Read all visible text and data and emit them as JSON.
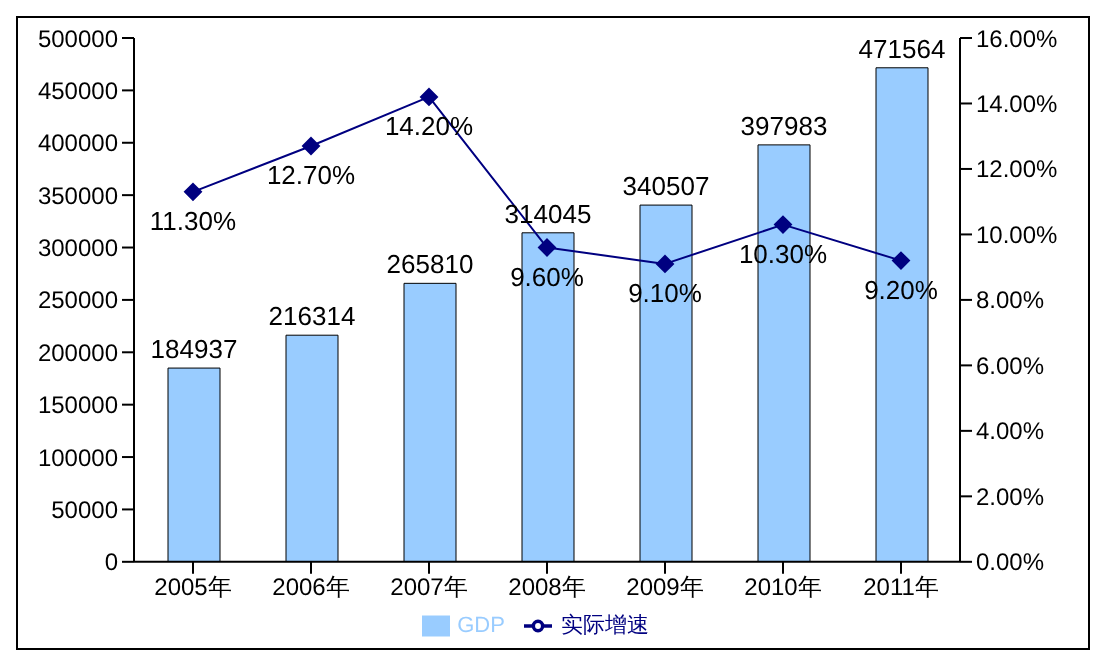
{
  "chart_data": {
    "type": "bar",
    "categories": [
      "2005年",
      "2006年",
      "2007年",
      "2008年",
      "2009年",
      "2010年",
      "2011年"
    ],
    "series": [
      {
        "name": "GDP",
        "color": "#99ccff",
        "values": [
          184937,
          216314,
          265810,
          314045,
          340507,
          397983,
          471564
        ],
        "value_labels": [
          "184937",
          "216314",
          "265810",
          "314045",
          "340507",
          "397983",
          "471564"
        ]
      },
      {
        "name": "实际增速",
        "type": "line",
        "axis": "y2",
        "color": "#000080",
        "marker": "diamond",
        "values": [
          11.3,
          12.7,
          14.2,
          9.6,
          9.1,
          10.3,
          9.2
        ],
        "value_labels": [
          "11.30%",
          "12.70%",
          "14.20%",
          "9.60%",
          "9.10%",
          "10.30%",
          "9.20%"
        ]
      }
    ],
    "ylim": [
      0,
      500000
    ],
    "yticks": [
      0,
      50000,
      100000,
      150000,
      200000,
      250000,
      300000,
      350000,
      400000,
      450000,
      500000
    ],
    "y2lim": [
      0,
      16
    ],
    "y2ticks": [
      {
        "value": 0,
        "label": "0.00%"
      },
      {
        "value": 2,
        "label": "2.00%"
      },
      {
        "value": 4,
        "label": "4.00%"
      },
      {
        "value": 6,
        "label": "6.00%"
      },
      {
        "value": 8,
        "label": "8.00%"
      },
      {
        "value": 10,
        "label": "10.00%"
      },
      {
        "value": 12,
        "label": "12.00%"
      },
      {
        "value": 14,
        "label": "14.00%"
      },
      {
        "value": 16,
        "label": "16.00%"
      }
    ],
    "grid": false,
    "legend": "bottom"
  }
}
